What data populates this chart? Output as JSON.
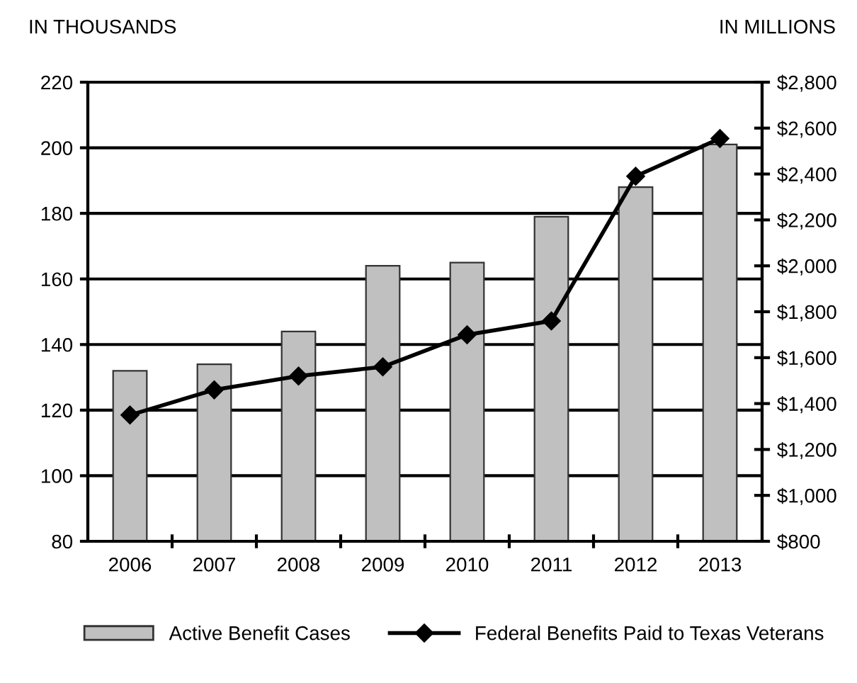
{
  "chart_data": {
    "type": "bar",
    "ylabel": "IN THOUSANDS",
    "y2label": "IN MILLIONS",
    "categories": [
      "2006",
      "2007",
      "2008",
      "2009",
      "2010",
      "2011",
      "2012",
      "2013"
    ],
    "series": [
      {
        "name": "Active Benefit Cases",
        "color": "#c0c0c0",
        "values": [
          132,
          134,
          144,
          164,
          165,
          179,
          188,
          201
        ]
      },
      {
        "name": "Federal Benefits Paid to Texas Veterans",
        "type": "line",
        "axis": "y2",
        "color": "#000000",
        "marker": "diamond",
        "values": [
          1350,
          1460,
          1520,
          1560,
          1700,
          1760,
          2390,
          2555
        ]
      }
    ],
    "ylim": [
      80,
      220
    ],
    "yticks": [
      80,
      100,
      120,
      140,
      160,
      180,
      200,
      220
    ],
    "y2lim": [
      800,
      2800
    ],
    "y2ticks": [
      {
        "value": 800,
        "label": "$800"
      },
      {
        "value": 1000,
        "label": "$1,000"
      },
      {
        "value": 1200,
        "label": "$1,200"
      },
      {
        "value": 1400,
        "label": "$1,400"
      },
      {
        "value": 1600,
        "label": "$1,600"
      },
      {
        "value": 1800,
        "label": "$1,800"
      },
      {
        "value": 2000,
        "label": "$2,000"
      },
      {
        "value": 2200,
        "label": "$2,200"
      },
      {
        "value": 2400,
        "label": "$2,400"
      },
      {
        "value": 2600,
        "label": "$2,600"
      },
      {
        "value": 2800,
        "label": "$2,800"
      }
    ],
    "grid": "y",
    "legend": "bottom"
  }
}
